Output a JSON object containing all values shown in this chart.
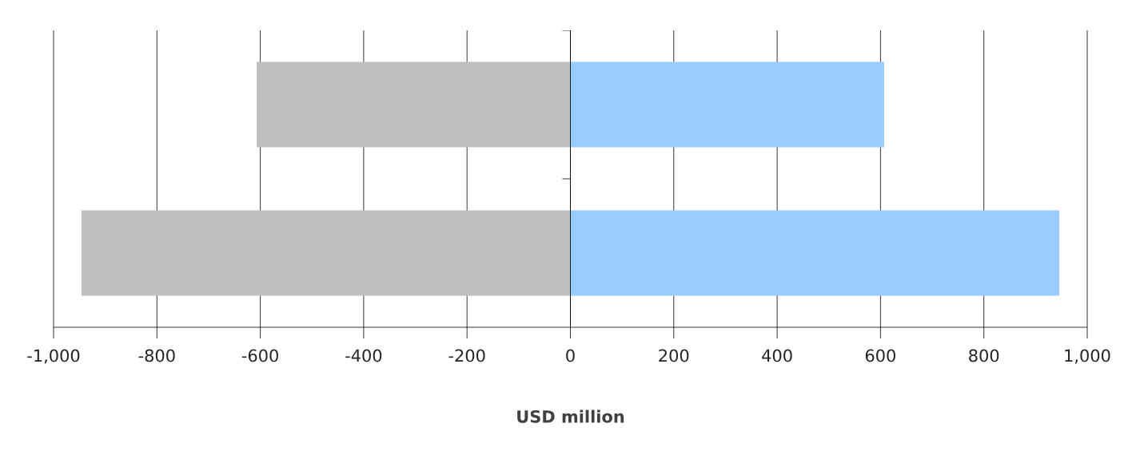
{
  "chart_data": {
    "type": "bar",
    "orientation": "horizontal",
    "xlabel": "USD million",
    "categories": [
      null,
      null
    ],
    "series": [
      {
        "color": "#bfbfbf",
        "values": [
          -607,
          -946
        ]
      },
      {
        "color": "#99ccff",
        "values": [
          607,
          946
        ]
      }
    ],
    "xlim": [
      -1000,
      1000
    ],
    "xticks": [
      {
        "value": -1000,
        "label": "-1,000"
      },
      {
        "value": -800,
        "label": "-800"
      },
      {
        "value": -600,
        "label": "-600"
      },
      {
        "value": -400,
        "label": "-400"
      },
      {
        "value": -200,
        "label": "-200"
      },
      {
        "value": 0,
        "label": "0"
      },
      {
        "value": 200,
        "label": "200"
      },
      {
        "value": 400,
        "label": "400"
      },
      {
        "value": 600,
        "label": "600"
      },
      {
        "value": 800,
        "label": "800"
      },
      {
        "value": 1000,
        "label": "1,000"
      }
    ],
    "stacked": true,
    "grid": "x"
  }
}
